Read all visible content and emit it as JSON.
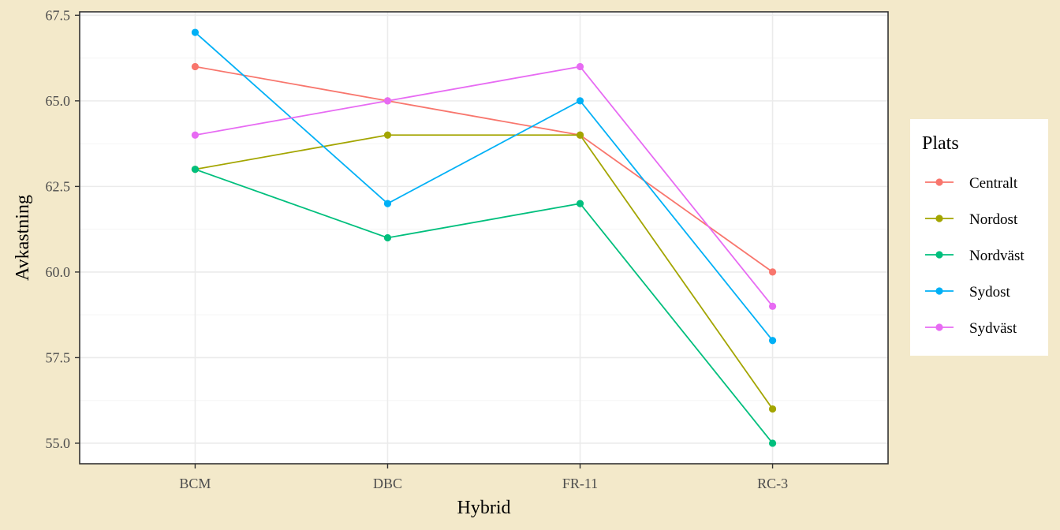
{
  "chart_data": {
    "type": "line",
    "categories": [
      "BCM",
      "DBC",
      "FR-11",
      "RC-3"
    ],
    "xlabel": "Hybrid",
    "ylabel": "Avkastning",
    "ylim": [
      54.4,
      67.6
    ],
    "yticks": [
      55.0,
      57.5,
      60.0,
      62.5,
      65.0,
      67.5
    ],
    "ytick_labels": [
      "55.0",
      "57.5",
      "60.0",
      "62.5",
      "65.0",
      "67.5"
    ],
    "grid": true,
    "legend": {
      "title": "Plats",
      "placement": "right"
    },
    "series": [
      {
        "name": "Centralt",
        "color": "#f8766d",
        "values": [
          66,
          65,
          64,
          60
        ]
      },
      {
        "name": "Nordost",
        "color": "#a3a500",
        "values": [
          63,
          64,
          64,
          56
        ]
      },
      {
        "name": "Nordväst",
        "color": "#00bf7d",
        "values": [
          63,
          61,
          62,
          55
        ]
      },
      {
        "name": "Sydost",
        "color": "#00b0f6",
        "values": [
          67,
          62,
          65,
          58
        ]
      },
      {
        "name": "Sydväst",
        "color": "#e76bf3",
        "values": [
          64,
          65,
          66,
          59
        ]
      }
    ]
  },
  "colors": {
    "page_background": "#f3e9ca",
    "panel_background": "#ffffff",
    "grid_major": "#ebebeb",
    "grid_minor": "#f5f5f5",
    "panel_border": "#333333"
  }
}
